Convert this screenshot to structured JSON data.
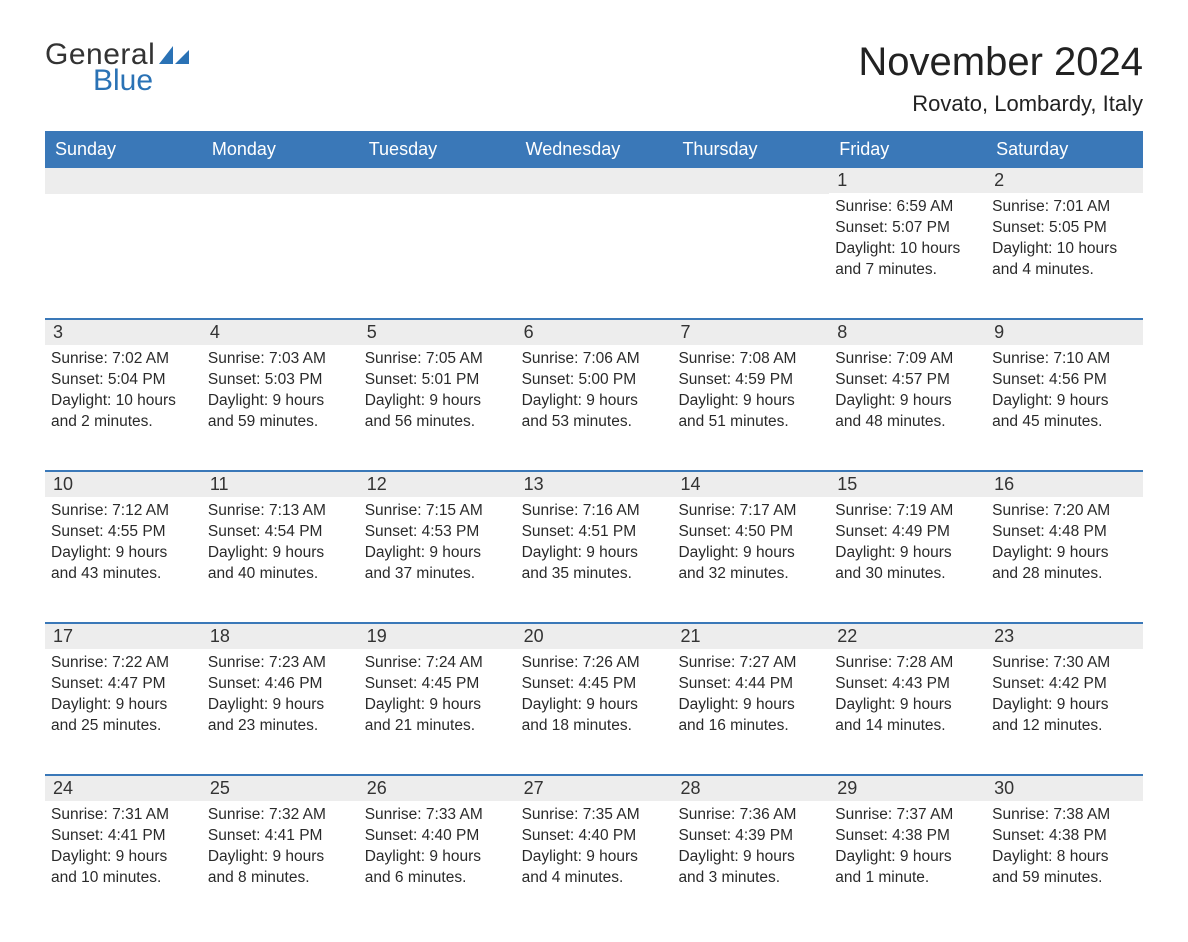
{
  "brand": {
    "general": "General",
    "blue": "Blue",
    "accent": "#2a72b5"
  },
  "title": "November 2024",
  "location": "Rovato, Lombardy, Italy",
  "colors": {
    "header_bg": "#3a78b8",
    "header_text": "#ffffff",
    "row_divider": "#3a78b8",
    "daynum_bg": "#ededed",
    "text": "#2a2a2a",
    "background": "#ffffff"
  },
  "day_names": [
    "Sunday",
    "Monday",
    "Tuesday",
    "Wednesday",
    "Thursday",
    "Friday",
    "Saturday"
  ],
  "weeks": [
    [
      null,
      null,
      null,
      null,
      null,
      {
        "n": "1",
        "sunrise": "Sunrise: 6:59 AM",
        "sunset": "Sunset: 5:07 PM",
        "daylight": "Daylight: 10 hours and 7 minutes."
      },
      {
        "n": "2",
        "sunrise": "Sunrise: 7:01 AM",
        "sunset": "Sunset: 5:05 PM",
        "daylight": "Daylight: 10 hours and 4 minutes."
      }
    ],
    [
      {
        "n": "3",
        "sunrise": "Sunrise: 7:02 AM",
        "sunset": "Sunset: 5:04 PM",
        "daylight": "Daylight: 10 hours and 2 minutes."
      },
      {
        "n": "4",
        "sunrise": "Sunrise: 7:03 AM",
        "sunset": "Sunset: 5:03 PM",
        "daylight": "Daylight: 9 hours and 59 minutes."
      },
      {
        "n": "5",
        "sunrise": "Sunrise: 7:05 AM",
        "sunset": "Sunset: 5:01 PM",
        "daylight": "Daylight: 9 hours and 56 minutes."
      },
      {
        "n": "6",
        "sunrise": "Sunrise: 7:06 AM",
        "sunset": "Sunset: 5:00 PM",
        "daylight": "Daylight: 9 hours and 53 minutes."
      },
      {
        "n": "7",
        "sunrise": "Sunrise: 7:08 AM",
        "sunset": "Sunset: 4:59 PM",
        "daylight": "Daylight: 9 hours and 51 minutes."
      },
      {
        "n": "8",
        "sunrise": "Sunrise: 7:09 AM",
        "sunset": "Sunset: 4:57 PM",
        "daylight": "Daylight: 9 hours and 48 minutes."
      },
      {
        "n": "9",
        "sunrise": "Sunrise: 7:10 AM",
        "sunset": "Sunset: 4:56 PM",
        "daylight": "Daylight: 9 hours and 45 minutes."
      }
    ],
    [
      {
        "n": "10",
        "sunrise": "Sunrise: 7:12 AM",
        "sunset": "Sunset: 4:55 PM",
        "daylight": "Daylight: 9 hours and 43 minutes."
      },
      {
        "n": "11",
        "sunrise": "Sunrise: 7:13 AM",
        "sunset": "Sunset: 4:54 PM",
        "daylight": "Daylight: 9 hours and 40 minutes."
      },
      {
        "n": "12",
        "sunrise": "Sunrise: 7:15 AM",
        "sunset": "Sunset: 4:53 PM",
        "daylight": "Daylight: 9 hours and 37 minutes."
      },
      {
        "n": "13",
        "sunrise": "Sunrise: 7:16 AM",
        "sunset": "Sunset: 4:51 PM",
        "daylight": "Daylight: 9 hours and 35 minutes."
      },
      {
        "n": "14",
        "sunrise": "Sunrise: 7:17 AM",
        "sunset": "Sunset: 4:50 PM",
        "daylight": "Daylight: 9 hours and 32 minutes."
      },
      {
        "n": "15",
        "sunrise": "Sunrise: 7:19 AM",
        "sunset": "Sunset: 4:49 PM",
        "daylight": "Daylight: 9 hours and 30 minutes."
      },
      {
        "n": "16",
        "sunrise": "Sunrise: 7:20 AM",
        "sunset": "Sunset: 4:48 PM",
        "daylight": "Daylight: 9 hours and 28 minutes."
      }
    ],
    [
      {
        "n": "17",
        "sunrise": "Sunrise: 7:22 AM",
        "sunset": "Sunset: 4:47 PM",
        "daylight": "Daylight: 9 hours and 25 minutes."
      },
      {
        "n": "18",
        "sunrise": "Sunrise: 7:23 AM",
        "sunset": "Sunset: 4:46 PM",
        "daylight": "Daylight: 9 hours and 23 minutes."
      },
      {
        "n": "19",
        "sunrise": "Sunrise: 7:24 AM",
        "sunset": "Sunset: 4:45 PM",
        "daylight": "Daylight: 9 hours and 21 minutes."
      },
      {
        "n": "20",
        "sunrise": "Sunrise: 7:26 AM",
        "sunset": "Sunset: 4:45 PM",
        "daylight": "Daylight: 9 hours and 18 minutes."
      },
      {
        "n": "21",
        "sunrise": "Sunrise: 7:27 AM",
        "sunset": "Sunset: 4:44 PM",
        "daylight": "Daylight: 9 hours and 16 minutes."
      },
      {
        "n": "22",
        "sunrise": "Sunrise: 7:28 AM",
        "sunset": "Sunset: 4:43 PM",
        "daylight": "Daylight: 9 hours and 14 minutes."
      },
      {
        "n": "23",
        "sunrise": "Sunrise: 7:30 AM",
        "sunset": "Sunset: 4:42 PM",
        "daylight": "Daylight: 9 hours and 12 minutes."
      }
    ],
    [
      {
        "n": "24",
        "sunrise": "Sunrise: 7:31 AM",
        "sunset": "Sunset: 4:41 PM",
        "daylight": "Daylight: 9 hours and 10 minutes."
      },
      {
        "n": "25",
        "sunrise": "Sunrise: 7:32 AM",
        "sunset": "Sunset: 4:41 PM",
        "daylight": "Daylight: 9 hours and 8 minutes."
      },
      {
        "n": "26",
        "sunrise": "Sunrise: 7:33 AM",
        "sunset": "Sunset: 4:40 PM",
        "daylight": "Daylight: 9 hours and 6 minutes."
      },
      {
        "n": "27",
        "sunrise": "Sunrise: 7:35 AM",
        "sunset": "Sunset: 4:40 PM",
        "daylight": "Daylight: 9 hours and 4 minutes."
      },
      {
        "n": "28",
        "sunrise": "Sunrise: 7:36 AM",
        "sunset": "Sunset: 4:39 PM",
        "daylight": "Daylight: 9 hours and 3 minutes."
      },
      {
        "n": "29",
        "sunrise": "Sunrise: 7:37 AM",
        "sunset": "Sunset: 4:38 PM",
        "daylight": "Daylight: 9 hours and 1 minute."
      },
      {
        "n": "30",
        "sunrise": "Sunrise: 7:38 AM",
        "sunset": "Sunset: 4:38 PM",
        "daylight": "Daylight: 8 hours and 59 minutes."
      }
    ]
  ]
}
